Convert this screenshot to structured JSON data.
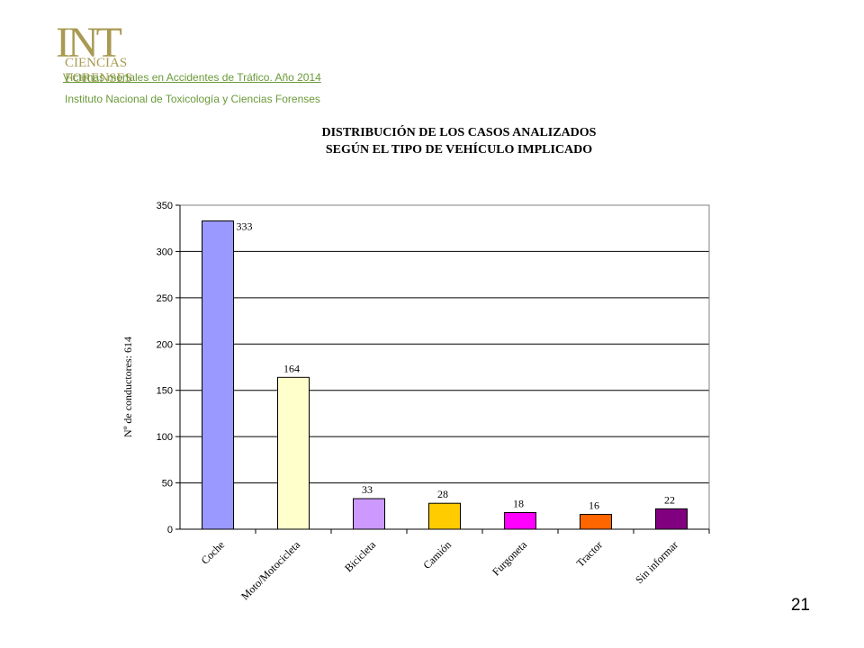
{
  "header": {
    "logo_text": "INT",
    "logo_subtitle": "CIENCIAS FORENSES",
    "link_title": "Víctimas mortales en Accidentes de Tráfico. Año 2014",
    "institute": "Instituto Nacional de Toxicología y Ciencias Forenses"
  },
  "colors": {
    "logo": "#a89a52",
    "header_text": "#6a9a3a"
  },
  "page_number": "21",
  "chart_data": {
    "type": "bar",
    "title_lines": [
      "DISTRIBUCIÓN DE LOS CASOS ANALIZADOS",
      "SEGÚN EL TIPO DE VEHÍCULO IMPLICADO"
    ],
    "ylabel": "Nº de conductores: 614",
    "xlabel": "",
    "ylim": [
      0,
      350
    ],
    "yticks": [
      0,
      50,
      100,
      150,
      200,
      250,
      300,
      350
    ],
    "grid": true,
    "categories": [
      "Coche",
      "Moto/Motocicleta",
      "Bicicleta",
      "Camión",
      "Furgoneta",
      "Tractor",
      "Sin informar"
    ],
    "values": [
      333,
      164,
      33,
      28,
      18,
      16,
      22
    ],
    "colors": [
      "#9999ff",
      "#ffffcc",
      "#cc99ff",
      "#ffcc00",
      "#ff00ff",
      "#ff6600",
      "#800080"
    ]
  }
}
